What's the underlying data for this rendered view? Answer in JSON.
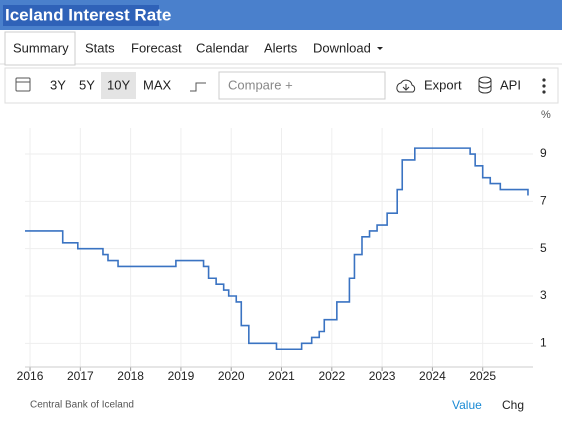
{
  "header": {
    "title": "Iceland Interest Rate"
  },
  "tabs": [
    "Summary",
    "Stats",
    "Forecast",
    "Calendar",
    "Alerts",
    "Download"
  ],
  "toolbar": {
    "ranges": [
      "3Y",
      "5Y",
      "10Y",
      "MAX"
    ],
    "compare": "Compare +",
    "export": "Export",
    "api": "API"
  },
  "chart_data": {
    "type": "line",
    "step": true,
    "y_label": "%",
    "x": [
      2015.9,
      2016.65,
      2016.95,
      2017.45,
      2017.55,
      2017.75,
      2018.9,
      2019.45,
      2019.55,
      2019.7,
      2019.85,
      2019.95,
      2020.1,
      2020.2,
      2020.35,
      2020.9,
      2021.4,
      2021.6,
      2021.75,
      2021.85,
      2022.1,
      2022.35,
      2022.45,
      2022.6,
      2022.75,
      2022.9,
      2023.1,
      2023.3,
      2023.4,
      2023.65,
      2024.75,
      2024.85,
      2025.0,
      2025.15,
      2025.35,
      2025.9
    ],
    "series": [
      {
        "color": "#3a73c2",
        "values": [
          5.75,
          5.25,
          5.0,
          4.75,
          4.5,
          4.25,
          4.5,
          4.25,
          3.75,
          3.5,
          3.25,
          3.0,
          2.75,
          1.75,
          1.0,
          0.75,
          1.0,
          1.25,
          1.5,
          2.0,
          2.75,
          3.75,
          4.75,
          5.5,
          5.75,
          6.0,
          6.5,
          7.5,
          8.75,
          9.25,
          9.0,
          8.5,
          8.0,
          7.75,
          7.5,
          7.25
        ]
      }
    ],
    "xlim": [
      2015.9,
      2026.0
    ],
    "xticks": [
      2016,
      2017,
      2018,
      2019,
      2020,
      2021,
      2022,
      2023,
      2024,
      2025
    ],
    "ylim": [
      0,
      10.1
    ],
    "yticks": [
      1,
      3,
      5,
      7,
      9
    ],
    "grid": true
  },
  "footer": {
    "source": "Central Bank of Iceland",
    "value": "Value",
    "chg": "Chg"
  }
}
